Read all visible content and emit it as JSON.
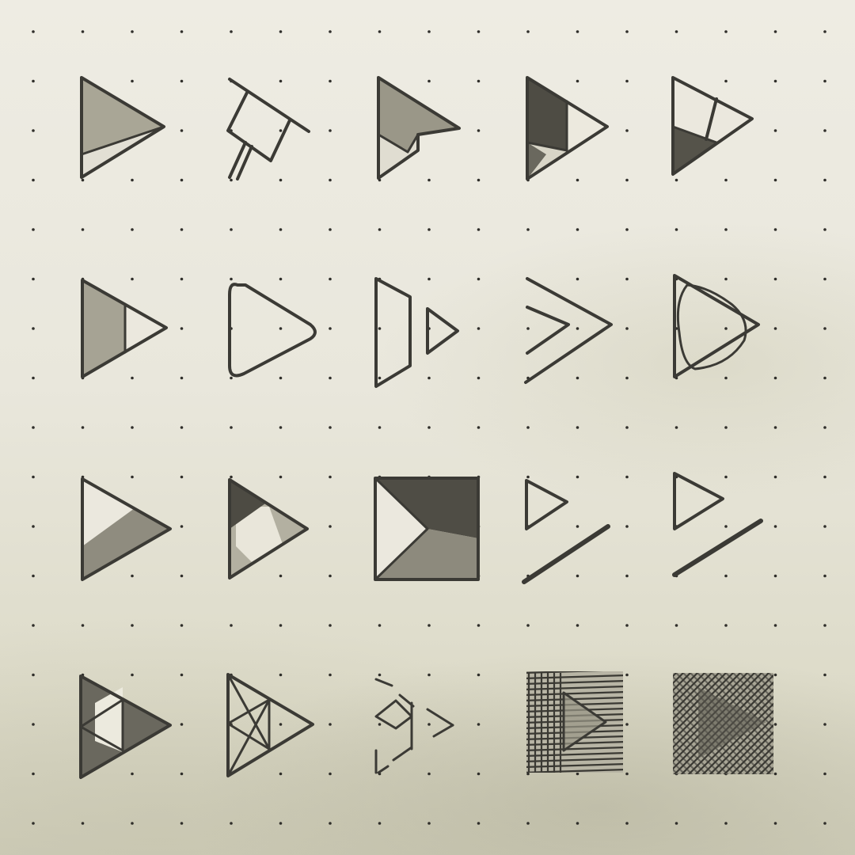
{
  "scene": {
    "description_visible_text": "",
    "paper_color": "#ebe9df",
    "dot_color": "#2f2e2a",
    "ink_color": "#3b3a35",
    "shade_light": "#c9c6b6",
    "shade_mid": "#9e9b8c",
    "shade_dark": "#5d5b52",
    "grid_rows": 4,
    "grid_cols": 5
  },
  "sketches": [
    {
      "row": 1,
      "col": 1,
      "icon": "play-triangle-half-shaded-icon"
    },
    {
      "row": 1,
      "col": 2,
      "icon": "play-outline-with-handle-icon"
    },
    {
      "row": 1,
      "col": 3,
      "icon": "play-cursor-arrow-icon"
    },
    {
      "row": 1,
      "col": 4,
      "icon": "play-triangle-quadrants-icon"
    },
    {
      "row": 1,
      "col": 5,
      "icon": "play-triangle-split-icon"
    },
    {
      "row": 2,
      "col": 1,
      "icon": "play-triangle-shaded-left-icon"
    },
    {
      "row": 2,
      "col": 2,
      "icon": "play-rounded-triangle-icon"
    },
    {
      "row": 2,
      "col": 3,
      "icon": "play-bar-and-triangle-icon"
    },
    {
      "row": 2,
      "col": 4,
      "icon": "play-nested-chevrons-icon"
    },
    {
      "row": 2,
      "col": 5,
      "icon": "play-triangle-circle-icon"
    },
    {
      "row": 3,
      "col": 1,
      "icon": "play-triangle-bottom-shaded-icon"
    },
    {
      "row": 3,
      "col": 2,
      "icon": "play-triangle-tip-dark-icon"
    },
    {
      "row": 3,
      "col": 3,
      "icon": "play-in-square-icon"
    },
    {
      "row": 3,
      "col": 4,
      "icon": "play-filled-with-slash-icon"
    },
    {
      "row": 3,
      "col": 5,
      "icon": "play-outline-with-slash-icon"
    },
    {
      "row": 4,
      "col": 1,
      "icon": "play-sierpinski-shaded-icon"
    },
    {
      "row": 4,
      "col": 2,
      "icon": "play-sierpinski-outline-icon"
    },
    {
      "row": 4,
      "col": 3,
      "icon": "play-dashed-fragments-icon"
    },
    {
      "row": 4,
      "col": 4,
      "icon": "play-hatched-square-vertical-icon"
    },
    {
      "row": 4,
      "col": 5,
      "icon": "play-hatched-square-diagonal-icon"
    }
  ]
}
